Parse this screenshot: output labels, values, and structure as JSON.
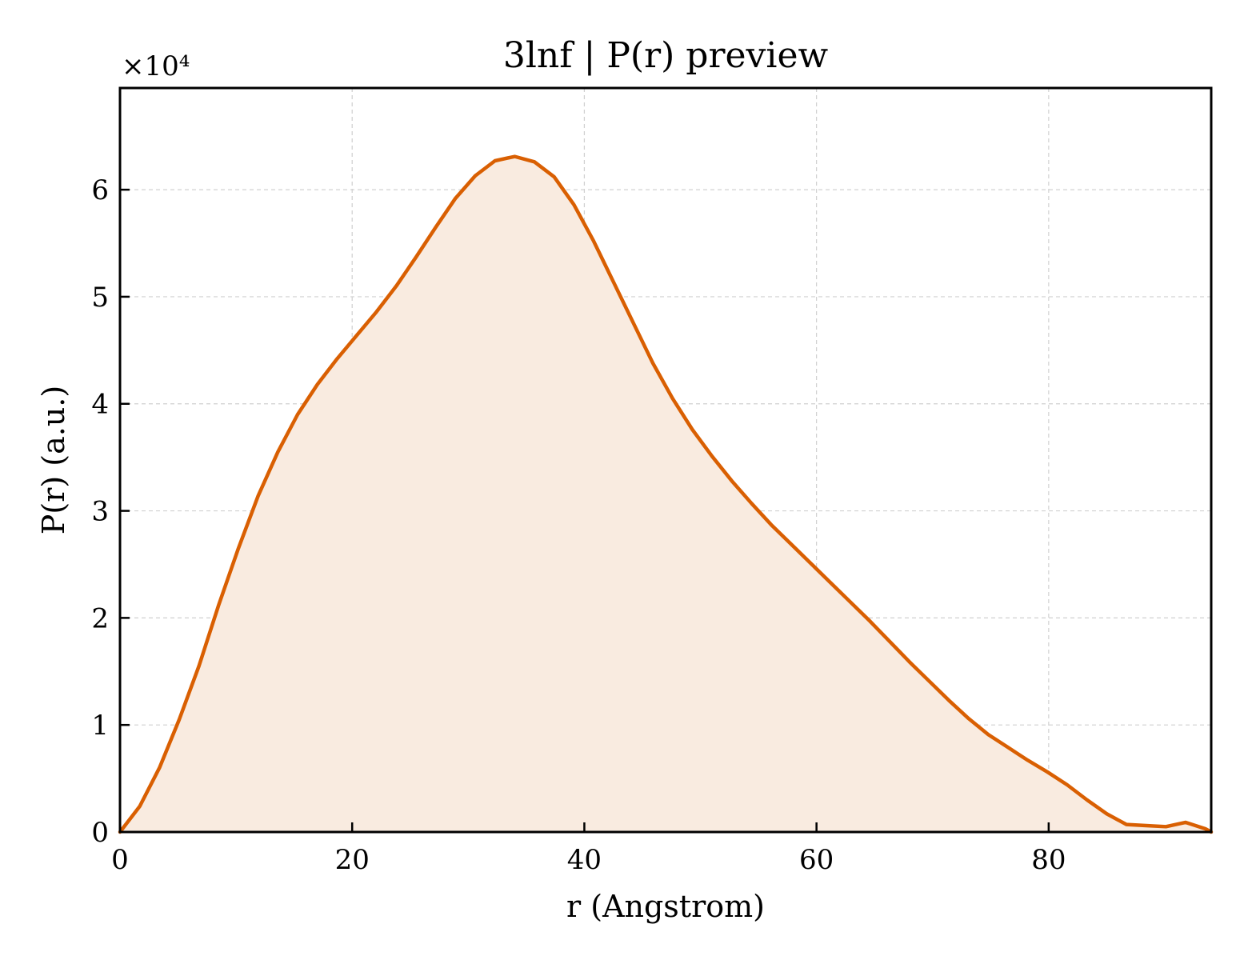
{
  "chart_data": {
    "type": "area",
    "title": "3lnf | P(r) preview",
    "xlabel": "r (Angstrom)",
    "ylabel": "P(r) (a.u.)",
    "y_scale_label": "×10⁴",
    "xlim": [
      0,
      94
    ],
    "ylim": [
      0,
      6.95
    ],
    "xticks": [
      0,
      20,
      40,
      60,
      80
    ],
    "yticks": [
      0,
      1,
      2,
      3,
      4,
      5,
      6
    ],
    "grid": true,
    "colors": {
      "line": "#d95f02",
      "fill": "#f9ebe0",
      "grid": "#d0d0d0"
    },
    "series": [
      {
        "x": [
          0,
          1.7,
          3.4,
          5.1,
          6.8,
          8.5,
          10.2,
          11.9,
          13.6,
          15.3,
          17.0,
          18.7,
          20.4,
          22.1,
          23.8,
          25.5,
          27.2,
          28.9,
          30.6,
          32.3,
          34.0,
          35.7,
          37.4,
          39.1,
          40.8,
          42.5,
          44.2,
          45.9,
          47.6,
          49.3,
          51.0,
          52.7,
          54.4,
          56.1,
          57.8,
          59.5,
          61.2,
          62.9,
          64.6,
          66.3,
          68.0,
          69.7,
          71.4,
          73.1,
          74.8,
          76.5,
          78.2,
          79.9,
          81.6,
          83.3,
          85.0,
          86.7,
          88.4,
          90.1,
          91.8,
          93.5,
          94.0
        ],
        "y": [
          0.0,
          0.24,
          0.6,
          1.05,
          1.55,
          2.12,
          2.65,
          3.14,
          3.55,
          3.9,
          4.18,
          4.42,
          4.64,
          4.86,
          5.1,
          5.37,
          5.65,
          5.92,
          6.13,
          6.27,
          6.31,
          6.26,
          6.12,
          5.86,
          5.52,
          5.14,
          4.76,
          4.38,
          4.05,
          3.76,
          3.51,
          3.28,
          3.07,
          2.87,
          2.69,
          2.51,
          2.33,
          2.15,
          1.97,
          1.78,
          1.59,
          1.41,
          1.23,
          1.06,
          0.91,
          0.79,
          0.67,
          0.56,
          0.44,
          0.3,
          0.17,
          0.07,
          0.06,
          0.05,
          0.09,
          0.03,
          0.0
        ]
      }
    ]
  }
}
